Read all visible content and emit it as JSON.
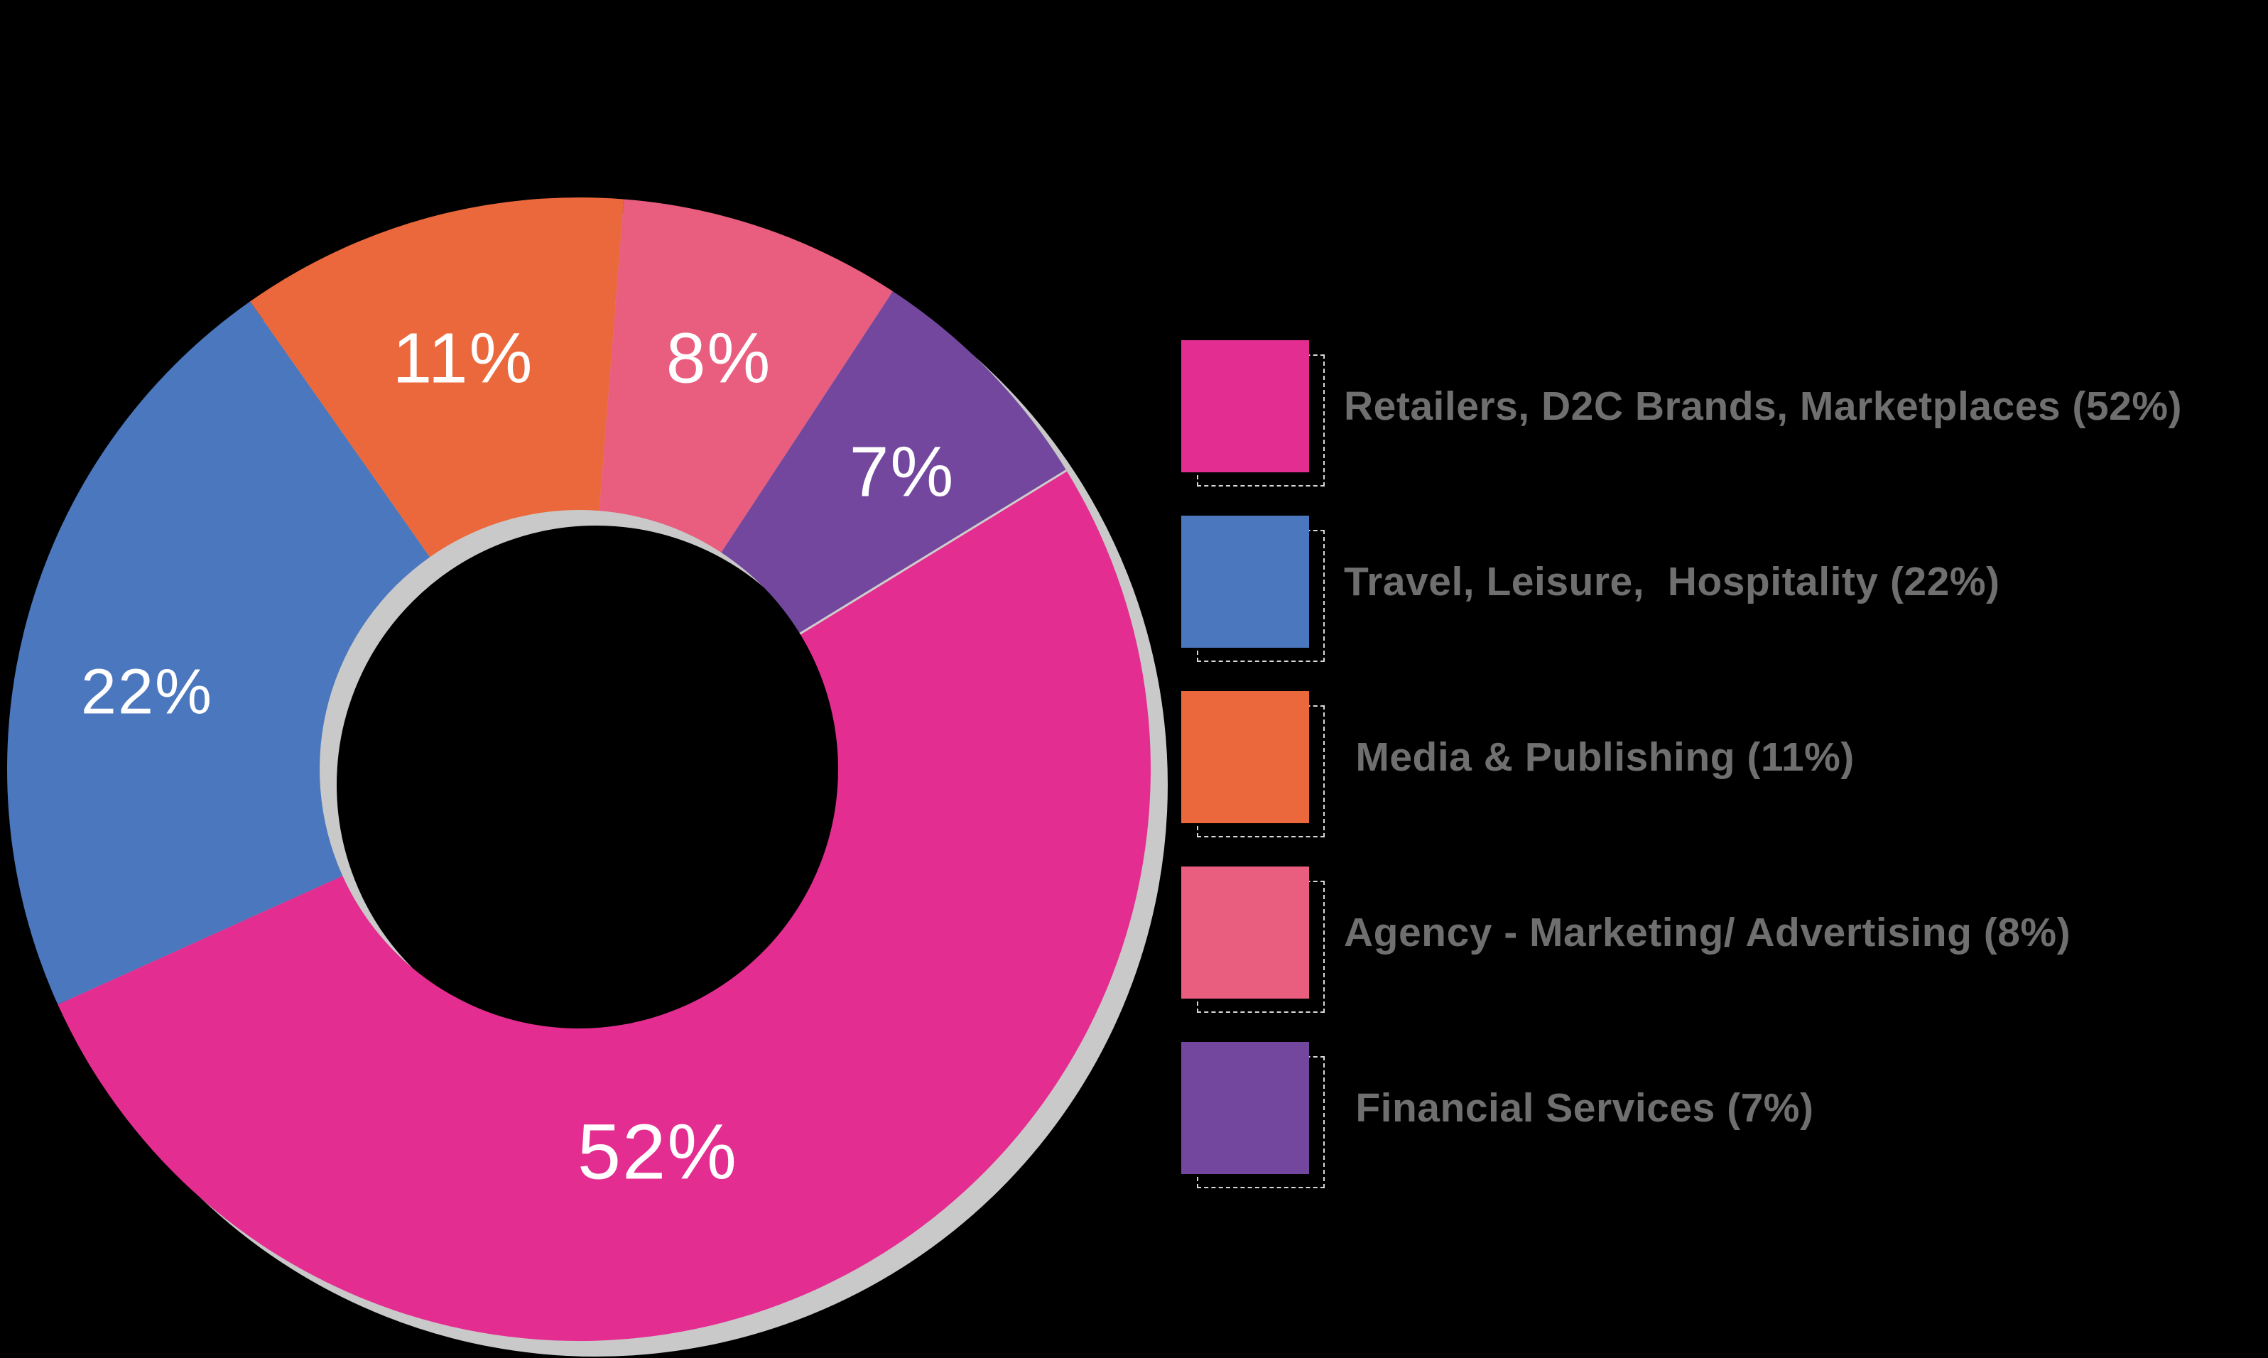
{
  "background": "#000000",
  "chart_data": {
    "type": "pie",
    "subtype": "donut",
    "title": "",
    "slices": [
      {
        "label": "Retailers, D2C Brands, Marketplaces",
        "value": 52,
        "pct_label": "52%",
        "color": "#E42D90"
      },
      {
        "label": "Travel, Leisure,  Hospitality",
        "value": 22,
        "pct_label": "22%",
        "color": "#4A77BD"
      },
      {
        "label": "Media & Publishing",
        "value": 11,
        "pct_label": "11%",
        "color": "#EB683D"
      },
      {
        "label": "Agency - Marketing/ Advertising",
        "value": 8,
        "pct_label": "8%",
        "color": "#E95E7E"
      },
      {
        "label": "Financial Services",
        "value": 7,
        "pct_label": "7%",
        "color": "#72479D"
      }
    ],
    "legend": {
      "position": "right",
      "items": [
        "Retailers, D2C Brands, Marketplaces (52%)",
        "Travel, Leisure,  Hospitality (22%)",
        " Media & Publishing (11%)",
        "Agency - Marketing/ Advertising (8%)",
        " Financial Services (7%)"
      ]
    },
    "draw": {
      "start_deg": 4.5,
      "clockwise_order": [
        3,
        4,
        0,
        1,
        2
      ],
      "divider_after": 4,
      "label_positions": [
        [
          926,
          1622
        ],
        [
          207,
          975
        ],
        [
          652,
          505
        ],
        [
          1012,
          505
        ],
        [
          1270,
          665
        ]
      ],
      "label_font_px": [
        110,
        90,
        100,
        100,
        100
      ]
    },
    "colors": {
      "shadow": "#C9C9C9",
      "divider": "#CDCDCD",
      "slice_label_text": "#FFFFFF",
      "legend_text": "#6F6F6F"
    },
    "grid": false
  }
}
